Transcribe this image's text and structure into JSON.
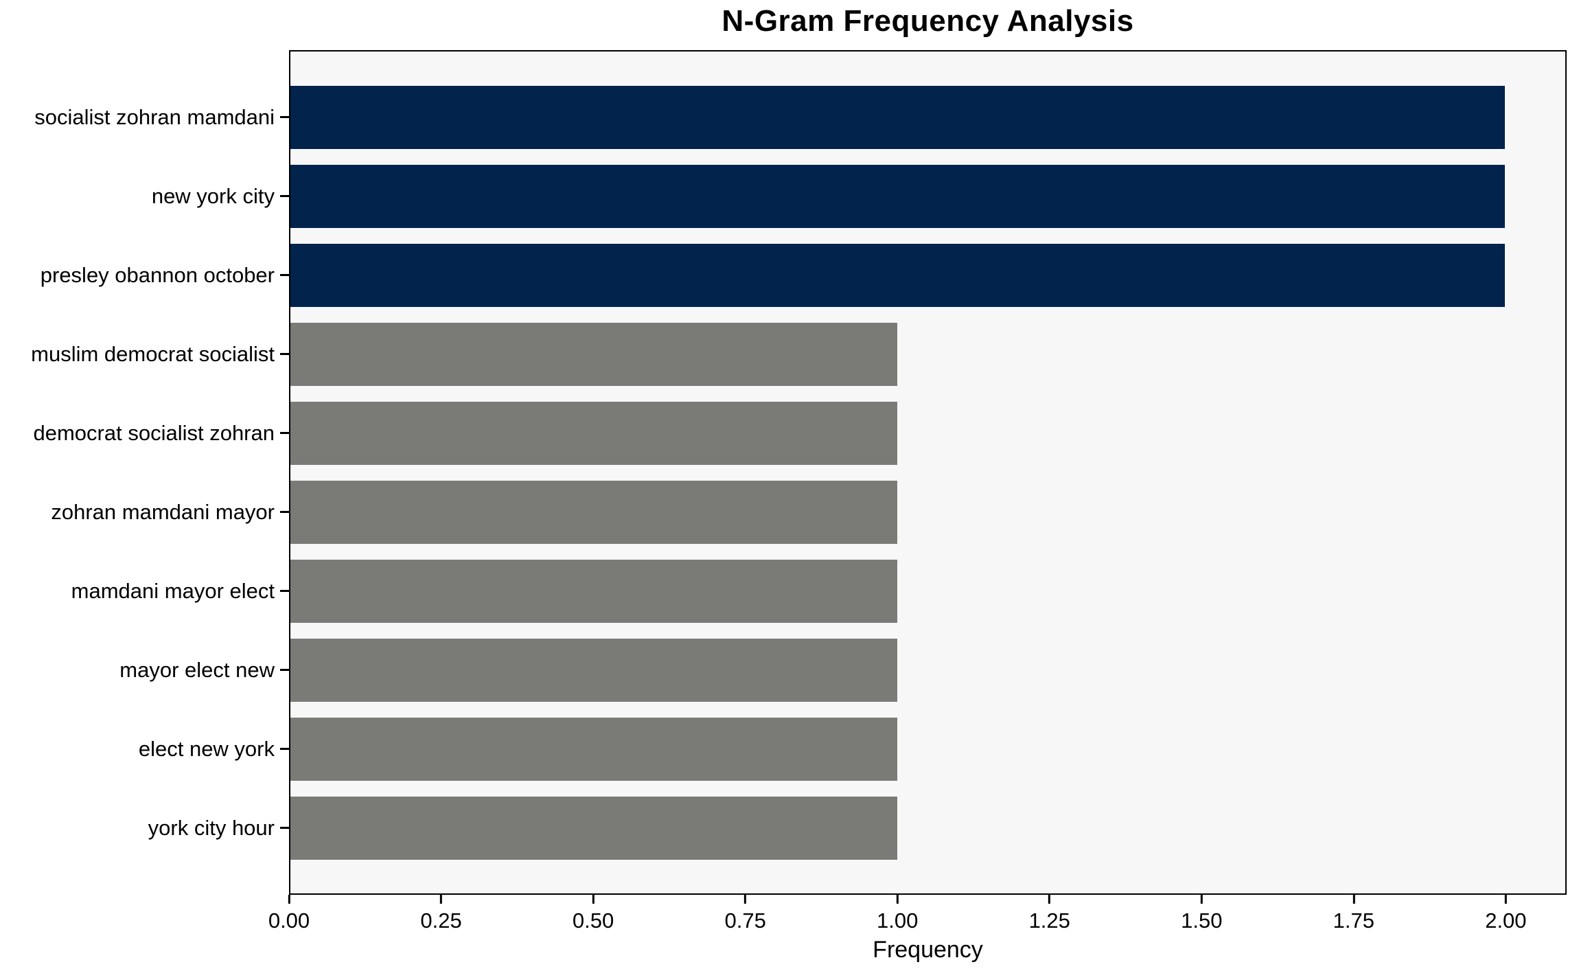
{
  "chart_data": {
    "type": "bar",
    "orientation": "horizontal",
    "title": "N-Gram Frequency Analysis",
    "xlabel": "Frequency",
    "ylabel": "",
    "categories": [
      "socialist zohran mamdani",
      "new york city",
      "presley obannon october",
      "muslim democrat socialist",
      "democrat socialist zohran",
      "zohran mamdani mayor",
      "mamdani mayor elect",
      "mayor elect new",
      "elect new york",
      "york city hour"
    ],
    "values": [
      2,
      2,
      2,
      1,
      1,
      1,
      1,
      1,
      1,
      1
    ],
    "bar_colors": [
      "#02234c",
      "#02234c",
      "#02234c",
      "#7a7a77",
      "#7a7a77",
      "#7a7a77",
      "#7a7a77",
      "#7a7a77",
      "#7a7a77",
      "#7a7a77"
    ],
    "xlim": [
      0,
      2.1
    ],
    "xtick_values": [
      0,
      0.25,
      0.5,
      0.75,
      1.0,
      1.25,
      1.5,
      1.75,
      2.0
    ],
    "xtick_labels": [
      "0.00",
      "0.25",
      "0.50",
      "0.75",
      "1.00",
      "1.25",
      "1.50",
      "1.75",
      "2.00"
    ],
    "grid": "off",
    "legend": "none",
    "plot_background": "#f7f7f7",
    "figure_background": "#ffffff",
    "highlight_color": "#02234c",
    "base_color": "#7a7a77"
  }
}
